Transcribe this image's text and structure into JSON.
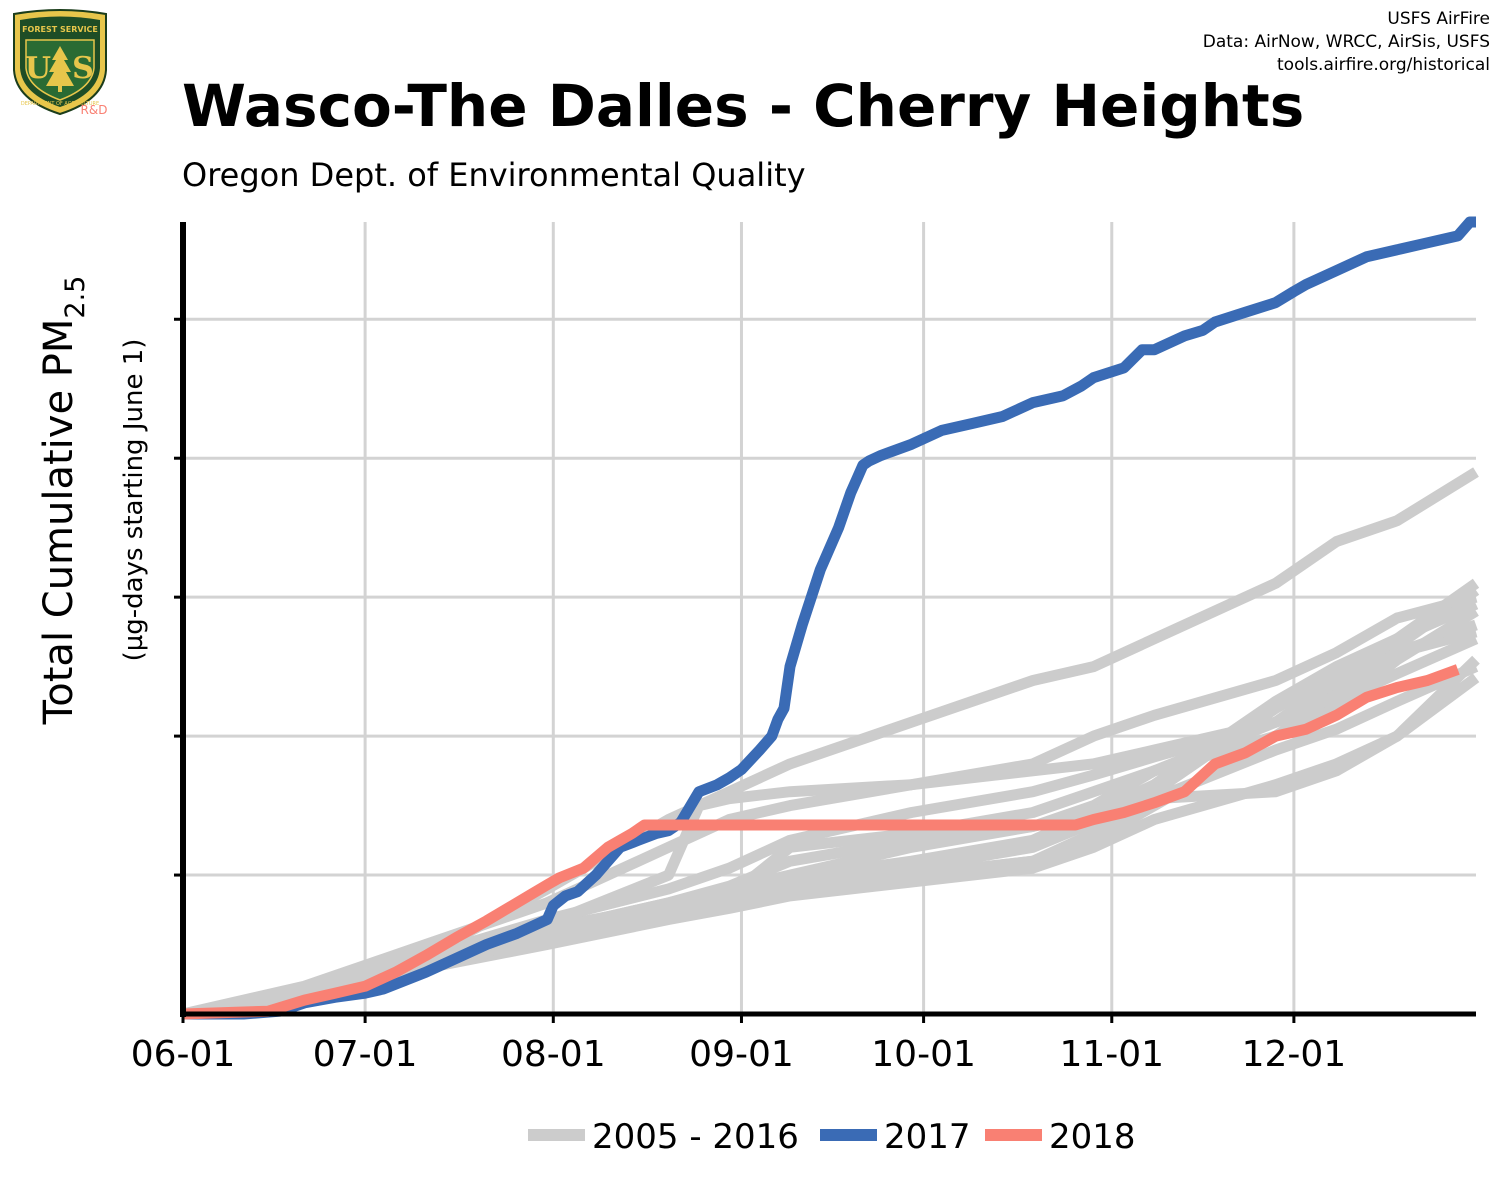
{
  "header": {
    "title": "Wasco-The Dalles - Cherry Heights",
    "subtitle": "Oregon Dept. of Environmental Quality"
  },
  "credit": {
    "line1": "USFS AirFire",
    "line2": "Data: AirNow, WRCC, AirSis, USFS",
    "line3": "tools.airfire.org/historical"
  },
  "logo": {
    "top_text": "FOREST SERVICE",
    "bottom_text": "DEPARTMENT OF AGRICULTURE",
    "letters_left": "U",
    "letters_right": "S",
    "badge": "R&D"
  },
  "colors": {
    "history": "#cccccc",
    "y2017": "#3a6bb5",
    "y2018": "#f98073",
    "grid": "#d3d3d3",
    "axis": "#000000"
  },
  "chart_data": {
    "type": "line",
    "xlabel": "",
    "ylabel_main": "Total Cumulative PM",
    "ylabel_sub": "2.5",
    "ylabel_secondary": "(µg-days starting June 1)",
    "x_ticks": [
      "06-01",
      "07-01",
      "08-01",
      "09-01",
      "10-01",
      "11-01",
      "12-01"
    ],
    "x_tick_days": [
      0,
      30,
      61,
      92,
      122,
      153,
      183
    ],
    "xlim": [
      0,
      213
    ],
    "ylim": [
      0,
      5.7
    ],
    "y_gridlines": [
      1,
      2,
      3,
      4,
      5
    ],
    "y_tick_labels_shown": false,
    "grid": true,
    "legend": {
      "position": "bottom",
      "entries": [
        {
          "label": "2005 - 2016",
          "color_key": "history"
        },
        {
          "label": "2017",
          "color_key": "y2017"
        },
        {
          "label": "2018",
          "color_key": "y2018"
        }
      ]
    },
    "series": [
      {
        "name": "2017",
        "color_key": "y2017",
        "highlight": true,
        "x": [
          0,
          10,
          16,
          20,
          25,
          30,
          33,
          40,
          45,
          50,
          55,
          60,
          61,
          63,
          65,
          68,
          70,
          72,
          75,
          78,
          80,
          82,
          85,
          88,
          90,
          92,
          95,
          97,
          98,
          99,
          100,
          102,
          105,
          108,
          110,
          111,
          112,
          113,
          115,
          120,
          125,
          130,
          135,
          140,
          145,
          148,
          150,
          155,
          158,
          160,
          165,
          168,
          170,
          175,
          180,
          183,
          185,
          190,
          195,
          200,
          205,
          210,
          212,
          213
        ],
        "y": [
          0,
          0,
          0.02,
          0.08,
          0.12,
          0.15,
          0.18,
          0.3,
          0.4,
          0.5,
          0.58,
          0.68,
          0.78,
          0.85,
          0.88,
          1.0,
          1.1,
          1.2,
          1.25,
          1.3,
          1.32,
          1.38,
          1.6,
          1.65,
          1.7,
          1.76,
          1.9,
          2.0,
          2.12,
          2.2,
          2.5,
          2.8,
          3.2,
          3.5,
          3.75,
          3.85,
          3.95,
          3.98,
          4.02,
          4.1,
          4.2,
          4.25,
          4.3,
          4.4,
          4.45,
          4.52,
          4.58,
          4.65,
          4.78,
          4.78,
          4.88,
          4.92,
          4.98,
          5.05,
          5.12,
          5.2,
          5.25,
          5.35,
          5.45,
          5.5,
          5.55,
          5.6,
          5.7,
          5.7
        ]
      },
      {
        "name": "2018",
        "color_key": "y2018",
        "highlight": true,
        "x": [
          0,
          14,
          20,
          25,
          30,
          35,
          40,
          45,
          50,
          55,
          60,
          62,
          66,
          70,
          72,
          74,
          76,
          100,
          130,
          147,
          150,
          155,
          160,
          165,
          168,
          170,
          175,
          180,
          185,
          190,
          195,
          200,
          205,
          210
        ],
        "y": [
          0,
          0.02,
          0.1,
          0.15,
          0.2,
          0.3,
          0.42,
          0.55,
          0.67,
          0.8,
          0.93,
          0.98,
          1.05,
          1.2,
          1.25,
          1.3,
          1.36,
          1.36,
          1.36,
          1.36,
          1.4,
          1.45,
          1.52,
          1.6,
          1.72,
          1.8,
          1.88,
          2.0,
          2.05,
          2.15,
          2.28,
          2.35,
          2.4,
          2.48
        ]
      },
      {
        "x": [
          0,
          20,
          40,
          60,
          80,
          90,
          100,
          120,
          140,
          150,
          160,
          180,
          190,
          200,
          213
        ],
        "y": [
          0,
          0.15,
          0.42,
          0.9,
          1.4,
          1.6,
          1.8,
          2.1,
          2.4,
          2.5,
          2.7,
          3.1,
          3.4,
          3.55,
          3.9
        ]
      },
      {
        "x": [
          0,
          20,
          40,
          60,
          80,
          90,
          100,
          120,
          140,
          150,
          160,
          180,
          190,
          200,
          213
        ],
        "y": [
          0,
          0.2,
          0.5,
          0.8,
          1.2,
          1.4,
          1.5,
          1.65,
          1.8,
          2.0,
          2.15,
          2.4,
          2.6,
          2.85,
          3.0
        ]
      },
      {
        "x": [
          0,
          20,
          40,
          60,
          80,
          90,
          100,
          120,
          140,
          150,
          160,
          180,
          190,
          200,
          213
        ],
        "y": [
          0,
          0.12,
          0.4,
          0.6,
          0.8,
          0.9,
          1.0,
          1.2,
          1.35,
          1.5,
          1.75,
          2.1,
          2.35,
          2.6,
          2.8
        ]
      },
      {
        "x": [
          0,
          20,
          40,
          60,
          80,
          90,
          100,
          120,
          140,
          150,
          160,
          180,
          190,
          200,
          213
        ],
        "y": [
          0,
          0.15,
          0.4,
          0.62,
          0.78,
          0.88,
          0.98,
          1.1,
          1.25,
          1.45,
          1.65,
          2.25,
          2.5,
          2.7,
          2.95
        ]
      },
      {
        "x": [
          0,
          20,
          40,
          60,
          80,
          90,
          100,
          120,
          140,
          150,
          160,
          180,
          190,
          200,
          213
        ],
        "y": [
          0,
          0.14,
          0.38,
          0.58,
          0.75,
          0.85,
          0.95,
          1.05,
          1.2,
          1.38,
          1.6,
          2.2,
          2.45,
          2.65,
          3.05
        ]
      },
      {
        "x": [
          0,
          20,
          40,
          60,
          80,
          90,
          100,
          120,
          140,
          150,
          160,
          180,
          190,
          200,
          213
        ],
        "y": [
          0,
          0.13,
          0.36,
          0.55,
          0.72,
          0.8,
          0.92,
          1.0,
          1.1,
          1.25,
          1.5,
          2.0,
          2.3,
          2.6,
          2.75
        ]
      },
      {
        "x": [
          0,
          20,
          40,
          60,
          80,
          90,
          100,
          120,
          140,
          150,
          160,
          180,
          190,
          200,
          213
        ],
        "y": [
          0,
          0.13,
          0.35,
          0.52,
          0.7,
          0.78,
          0.9,
          1.0,
          1.1,
          1.3,
          1.55,
          1.9,
          2.05,
          2.25,
          2.5
        ]
      },
      {
        "x": [
          0,
          20,
          40,
          60,
          80,
          90,
          100,
          120,
          140,
          150,
          160,
          180,
          190,
          200,
          213
        ],
        "y": [
          0,
          0.12,
          0.33,
          0.5,
          0.68,
          0.76,
          0.85,
          0.95,
          1.05,
          1.2,
          1.4,
          1.65,
          1.8,
          2.0,
          2.42
        ]
      },
      {
        "x": [
          0,
          20,
          40,
          60,
          80,
          90,
          100,
          120,
          140,
          150,
          160,
          180,
          190,
          200,
          213
        ],
        "y": [
          0,
          0.14,
          0.38,
          0.6,
          0.8,
          0.92,
          1.1,
          1.25,
          1.35,
          1.45,
          1.55,
          1.6,
          1.75,
          2.0,
          2.55
        ]
      },
      {
        "x": [
          0,
          20,
          40,
          60,
          80,
          85,
          90,
          100,
          120,
          140,
          150,
          160,
          180,
          190,
          200,
          213
        ],
        "y": [
          0,
          0.15,
          0.4,
          0.65,
          1.0,
          1.5,
          1.55,
          1.6,
          1.65,
          1.75,
          1.8,
          1.9,
          2.1,
          2.25,
          2.45,
          2.7
        ]
      },
      {
        "x": [
          0,
          20,
          40,
          60,
          80,
          90,
          100,
          120,
          140,
          150,
          160,
          180,
          190,
          200,
          213
        ],
        "y": [
          0,
          0.13,
          0.35,
          0.55,
          0.75,
          0.85,
          1.2,
          1.3,
          1.45,
          1.6,
          1.75,
          2.0,
          2.2,
          2.55,
          2.9
        ]
      },
      {
        "x": [
          0,
          20,
          40,
          60,
          80,
          90,
          100,
          120,
          140,
          150,
          160,
          180,
          190,
          200,
          213
        ],
        "y": [
          0,
          0.16,
          0.42,
          0.68,
          0.9,
          1.05,
          1.25,
          1.45,
          1.6,
          1.72,
          1.85,
          2.1,
          2.4,
          2.7,
          3.1
        ]
      }
    ]
  }
}
